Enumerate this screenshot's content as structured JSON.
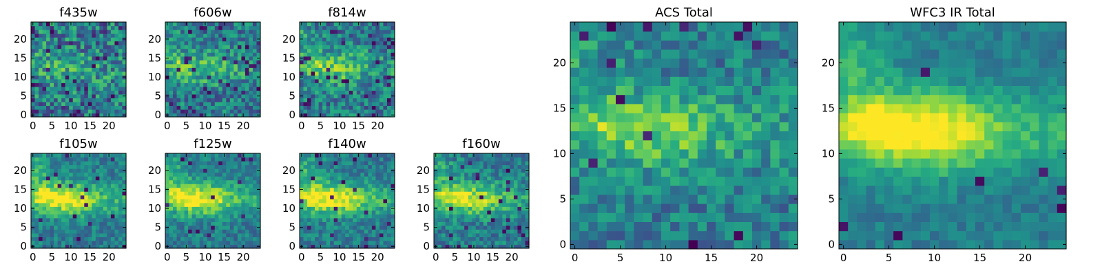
{
  "chart_data": [
    {
      "type": "heatmap",
      "title": "f435w",
      "xticks": [
        "0",
        "5",
        "10",
        "15",
        "20"
      ],
      "yticks": [
        "0",
        "5",
        "10",
        "15",
        "20"
      ],
      "xlim": [
        -0.5,
        24.5
      ],
      "ylim": [
        -0.5,
        24.5
      ],
      "grid_size": 25,
      "seed": 11,
      "structure": 0.2,
      "noise": 0.55,
      "dark_spots": 0.05,
      "colormap": "viridis"
    },
    {
      "type": "heatmap",
      "title": "f606w",
      "xticks": [
        "0",
        "5",
        "10",
        "15",
        "20"
      ],
      "yticks": [
        "0",
        "5",
        "10",
        "15",
        "20"
      ],
      "xlim": [
        -0.5,
        24.5
      ],
      "ylim": [
        -0.5,
        24.5
      ],
      "grid_size": 25,
      "seed": 23,
      "structure": 0.35,
      "noise": 0.45,
      "dark_spots": 0.05,
      "colormap": "viridis"
    },
    {
      "type": "heatmap",
      "title": "f814w",
      "xticks": [
        "0",
        "5",
        "10",
        "15",
        "20"
      ],
      "yticks": [
        "0",
        "5",
        "10",
        "15",
        "20"
      ],
      "xlim": [
        -0.5,
        24.5
      ],
      "ylim": [
        -0.5,
        24.5
      ],
      "grid_size": 25,
      "seed": 37,
      "structure": 0.4,
      "noise": 0.45,
      "dark_spots": 0.06,
      "colormap": "viridis"
    },
    {
      "type": "heatmap",
      "title": "f105w",
      "xticks": [
        "0",
        "5",
        "10",
        "15",
        "20"
      ],
      "yticks": [
        "0",
        "5",
        "10",
        "15",
        "20"
      ],
      "xlim": [
        -0.5,
        24.5
      ],
      "ylim": [
        -0.5,
        24.5
      ],
      "grid_size": 25,
      "seed": 41,
      "structure": 0.7,
      "noise": 0.3,
      "dark_spots": 0.03,
      "colormap": "viridis"
    },
    {
      "type": "heatmap",
      "title": "f125w",
      "xticks": [
        "0",
        "5",
        "10",
        "15",
        "20"
      ],
      "yticks": [
        "0",
        "5",
        "10",
        "15",
        "20"
      ],
      "xlim": [
        -0.5,
        24.5
      ],
      "ylim": [
        -0.5,
        24.5
      ],
      "grid_size": 25,
      "seed": 53,
      "structure": 0.7,
      "noise": 0.3,
      "dark_spots": 0.03,
      "colormap": "viridis"
    },
    {
      "type": "heatmap",
      "title": "f140w",
      "xticks": [
        "0",
        "5",
        "10",
        "15",
        "20"
      ],
      "yticks": [
        "0",
        "5",
        "10",
        "15",
        "20"
      ],
      "xlim": [
        -0.5,
        24.5
      ],
      "ylim": [
        -0.5,
        24.5
      ],
      "grid_size": 25,
      "seed": 67,
      "structure": 0.7,
      "noise": 0.3,
      "dark_spots": 0.03,
      "colormap": "viridis"
    },
    {
      "type": "heatmap",
      "title": "f160w",
      "xticks": [
        "0",
        "5",
        "10",
        "15",
        "20"
      ],
      "yticks": [
        "0",
        "5",
        "10",
        "15",
        "20"
      ],
      "xlim": [
        -0.5,
        24.5
      ],
      "ylim": [
        -0.5,
        24.5
      ],
      "grid_size": 25,
      "seed": 79,
      "structure": 0.6,
      "noise": 0.35,
      "dark_spots": 0.05,
      "colormap": "viridis"
    },
    {
      "type": "heatmap",
      "title": "ACS Total",
      "xticks": [
        "0",
        "5",
        "10",
        "15",
        "20"
      ],
      "yticks": [
        "0",
        "5",
        "10",
        "15",
        "20"
      ],
      "xlim": [
        -0.5,
        24.5
      ],
      "ylim": [
        -0.5,
        24.5
      ],
      "grid_size": 25,
      "seed": 97,
      "structure": 0.45,
      "noise": 0.35,
      "dark_spots": 0.02,
      "colormap": "viridis"
    },
    {
      "type": "heatmap",
      "title": "WFC3 IR Total",
      "xticks": [
        "0",
        "5",
        "10",
        "15",
        "20"
      ],
      "yticks": [
        "0",
        "5",
        "10",
        "15",
        "20"
      ],
      "xlim": [
        -0.5,
        24.5
      ],
      "ylim": [
        -0.5,
        24.5
      ],
      "grid_size": 25,
      "seed": 113,
      "structure": 0.8,
      "noise": 0.18,
      "dark_spots": 0.015,
      "colormap": "viridis"
    }
  ]
}
